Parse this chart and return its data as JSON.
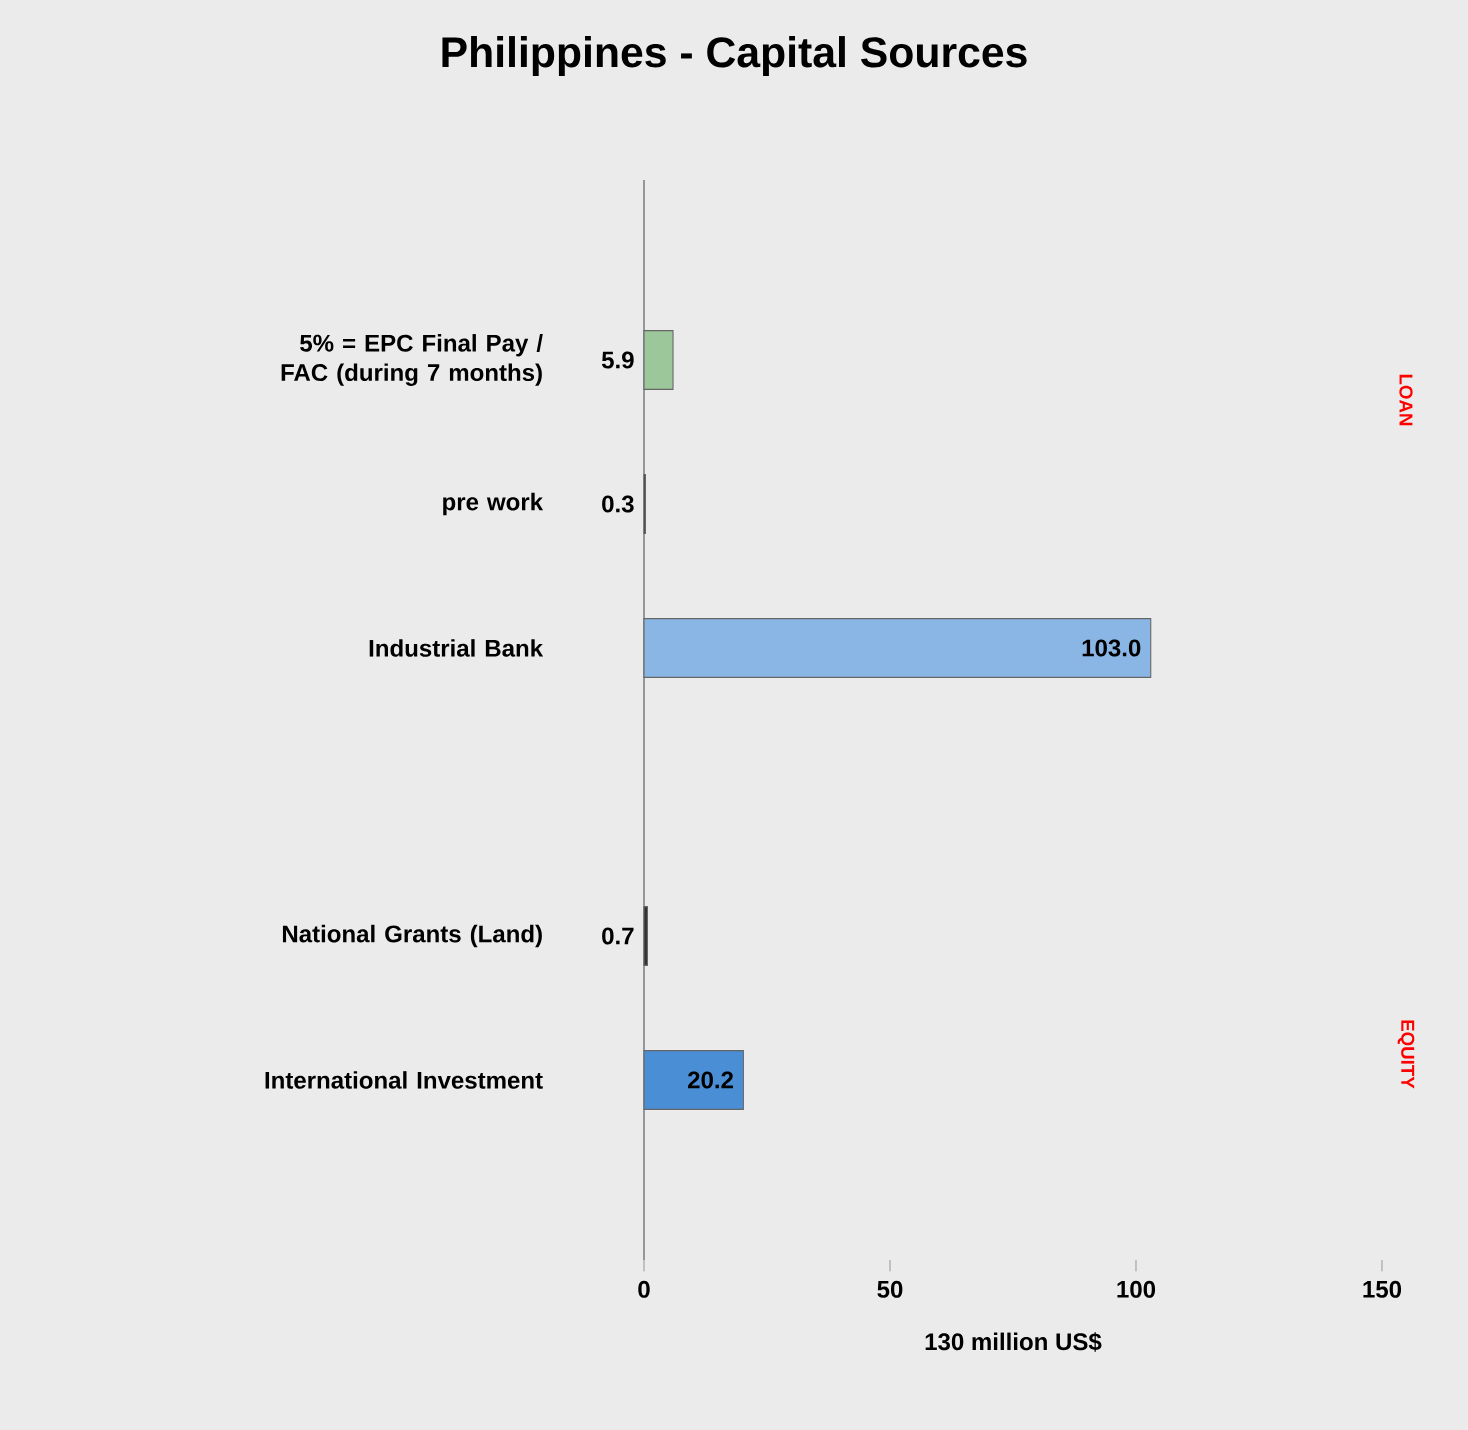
{
  "chart_data": {
    "type": "bar",
    "orientation": "horizontal",
    "title": "Philippines - Capital Sources",
    "xlabel": "130 million  US$",
    "categories": [
      "5% = EPC Final Pay / FAC (during 7 months)",
      "pre work",
      "Industrial Bank",
      null,
      "National Grants (Land)",
      "International Investment"
    ],
    "values": [
      5.9,
      0.3,
      103.0,
      null,
      0.7,
      20.2
    ],
    "value_labels": [
      "5.9",
      "0.3",
      "103.0",
      null,
      "0.7",
      "20.2"
    ],
    "colors": [
      "#9cc79a",
      "#333333",
      "#8ab6e6",
      "#cccccc",
      "#333333",
      "#4a8fd6"
    ],
    "xlim": [
      0,
      150
    ],
    "xticks": [
      0,
      50,
      100,
      150
    ],
    "grid": false,
    "annotations": [
      "LOAN",
      "EQUITY"
    ]
  }
}
